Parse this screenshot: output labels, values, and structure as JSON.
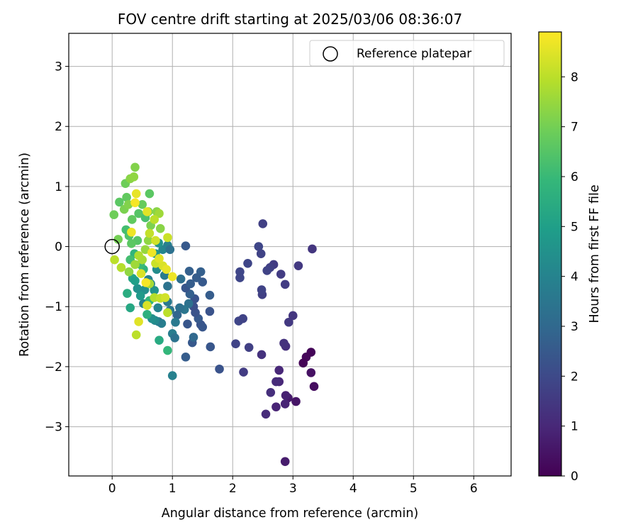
{
  "chart_data": {
    "type": "scatter",
    "title": "FOV centre drift starting at 2025/03/06 08:36:07",
    "xlabel": "Angular distance from reference (arcmin)",
    "ylabel": "Rotation from reference (arcmin)",
    "xlim": [
      -0.72,
      6.62
    ],
    "ylim": [
      -3.82,
      3.55
    ],
    "xticks": [
      0,
      1,
      2,
      3,
      4,
      5,
      6
    ],
    "xtick_labels": [
      "0",
      "1",
      "2",
      "3",
      "4",
      "5",
      "6"
    ],
    "yticks": [
      -3,
      -2,
      -1,
      0,
      1,
      2,
      3
    ],
    "ytick_labels": [
      "−3",
      "−2",
      "−1",
      "0",
      "1",
      "2",
      "3"
    ],
    "grid": true,
    "legend": {
      "placement": "top-right",
      "entries": [
        {
          "label": "Reference platepar",
          "marker": "open-circle"
        }
      ]
    },
    "reference_point": {
      "x": 0,
      "y": 0
    },
    "colorbar": {
      "label": "Hours from first FF file",
      "range": [
        0,
        8.9
      ],
      "ticks": [
        0,
        1,
        2,
        3,
        4,
        5,
        6,
        7,
        8
      ],
      "tick_labels": [
        "0",
        "1",
        "2",
        "3",
        "4",
        "5",
        "6",
        "7",
        "8"
      ],
      "colormap": "viridis",
      "stops": [
        "#440154",
        "#482878",
        "#3e4989",
        "#31688e",
        "#26828e",
        "#1f9e89",
        "#35b779",
        "#6ece58",
        "#b5de2b",
        "#fde725"
      ]
    },
    "points": [
      {
        "x": 2.87,
        "y": -3.58,
        "c": 0.7
      },
      {
        "x": 3.35,
        "y": -2.33,
        "c": 0.3
      },
      {
        "x": 3.3,
        "y": -2.1,
        "c": 0.4
      },
      {
        "x": 3.3,
        "y": -1.76,
        "c": 0.1
      },
      {
        "x": 3.22,
        "y": -1.84,
        "c": 0.15
      },
      {
        "x": 3.17,
        "y": -1.94,
        "c": 0.05
      },
      {
        "x": 3.05,
        "y": -2.58,
        "c": 0.5
      },
      {
        "x": 2.92,
        "y": -2.52,
        "c": 0.6
      },
      {
        "x": 2.88,
        "y": -2.48,
        "c": 0.8
      },
      {
        "x": 2.87,
        "y": -2.62,
        "c": 0.9
      },
      {
        "x": 2.77,
        "y": -2.25,
        "c": 1.0
      },
      {
        "x": 2.72,
        "y": -2.67,
        "c": 0.9
      },
      {
        "x": 2.72,
        "y": -2.25,
        "c": 1.1
      },
      {
        "x": 2.77,
        "y": -2.06,
        "c": 1.0
      },
      {
        "x": 2.63,
        "y": -2.43,
        "c": 1.2
      },
      {
        "x": 2.55,
        "y": -2.79,
        "c": 1.1
      },
      {
        "x": 2.88,
        "y": -1.66,
        "c": 1.2
      },
      {
        "x": 2.85,
        "y": -1.61,
        "c": 1.3
      },
      {
        "x": 2.48,
        "y": -1.8,
        "c": 1.3
      },
      {
        "x": 2.93,
        "y": -1.26,
        "c": 1.5
      },
      {
        "x": 3.0,
        "y": -1.15,
        "c": 1.4
      },
      {
        "x": 2.18,
        "y": -2.09,
        "c": 1.6
      },
      {
        "x": 2.27,
        "y": -1.68,
        "c": 1.7
      },
      {
        "x": 2.05,
        "y": -1.62,
        "c": 1.8
      },
      {
        "x": 2.1,
        "y": -1.24,
        "c": 1.9
      },
      {
        "x": 2.17,
        "y": -1.2,
        "c": 1.8
      },
      {
        "x": 2.49,
        "y": -0.8,
        "c": 1.7
      },
      {
        "x": 2.48,
        "y": -0.72,
        "c": 1.8
      },
      {
        "x": 2.87,
        "y": -0.63,
        "c": 1.6
      },
      {
        "x": 2.8,
        "y": -0.46,
        "c": 1.6
      },
      {
        "x": 2.68,
        "y": -0.3,
        "c": 1.6
      },
      {
        "x": 2.62,
        "y": -0.35,
        "c": 1.7
      },
      {
        "x": 2.57,
        "y": -0.4,
        "c": 1.8
      },
      {
        "x": 2.25,
        "y": -0.28,
        "c": 1.9
      },
      {
        "x": 2.12,
        "y": -0.42,
        "c": 1.9
      },
      {
        "x": 2.12,
        "y": -0.52,
        "c": 1.9
      },
      {
        "x": 2.43,
        "y": 0.0,
        "c": 1.9
      },
      {
        "x": 2.47,
        "y": -0.12,
        "c": 1.8
      },
      {
        "x": 2.5,
        "y": 0.38,
        "c": 1.7
      },
      {
        "x": 3.09,
        "y": -0.32,
        "c": 1.5
      },
      {
        "x": 3.32,
        "y": -0.04,
        "c": 1.4
      },
      {
        "x": 1.78,
        "y": -2.04,
        "c": 2.3
      },
      {
        "x": 1.63,
        "y": -1.67,
        "c": 2.4
      },
      {
        "x": 1.62,
        "y": -1.08,
        "c": 2.3
      },
      {
        "x": 1.62,
        "y": -0.81,
        "c": 2.6
      },
      {
        "x": 1.5,
        "y": -0.59,
        "c": 2.5
      },
      {
        "x": 1.47,
        "y": -0.42,
        "c": 2.7
      },
      {
        "x": 1.47,
        "y": -1.3,
        "c": 2.3
      },
      {
        "x": 1.5,
        "y": -1.34,
        "c": 2.4
      },
      {
        "x": 1.43,
        "y": -1.2,
        "c": 2.5
      },
      {
        "x": 1.22,
        "y": -1.84,
        "c": 2.6
      },
      {
        "x": 1.33,
        "y": -1.6,
        "c": 2.5
      },
      {
        "x": 1.35,
        "y": -1.51,
        "c": 3.0
      },
      {
        "x": 1.25,
        "y": -1.29,
        "c": 2.4
      },
      {
        "x": 1.38,
        "y": -1.1,
        "c": 2.3
      },
      {
        "x": 1.35,
        "y": -1.0,
        "c": 2.2
      },
      {
        "x": 1.37,
        "y": -0.87,
        "c": 2.3
      },
      {
        "x": 1.29,
        "y": -0.79,
        "c": 2.7
      },
      {
        "x": 1.22,
        "y": -0.69,
        "c": 2.4
      },
      {
        "x": 1.3,
        "y": -0.62,
        "c": 2.6
      },
      {
        "x": 1.4,
        "y": -0.52,
        "c": 2.6
      },
      {
        "x": 1.28,
        "y": -0.41,
        "c": 2.7
      },
      {
        "x": 1.14,
        "y": -0.54,
        "c": 3.2
      },
      {
        "x": 1.22,
        "y": 0.01,
        "c": 2.5
      },
      {
        "x": 1.27,
        "y": -0.95,
        "c": 3.3
      },
      {
        "x": 1.2,
        "y": -1.05,
        "c": 3.5
      },
      {
        "x": 1.12,
        "y": -1.02,
        "c": 3.3
      },
      {
        "x": 1.08,
        "y": -1.14,
        "c": 2.9
      },
      {
        "x": 1.05,
        "y": -1.26,
        "c": 3.6
      },
      {
        "x": 1.0,
        "y": -1.45,
        "c": 3.8
      },
      {
        "x": 1.04,
        "y": -1.52,
        "c": 3.4
      },
      {
        "x": 1.0,
        "y": -2.15,
        "c": 3.9
      },
      {
        "x": 0.96,
        "y": -1.06,
        "c": 3.5
      },
      {
        "x": 0.92,
        "y": -0.92,
        "c": 3.6
      },
      {
        "x": 0.92,
        "y": -0.66,
        "c": 3.4
      },
      {
        "x": 0.87,
        "y": -0.48,
        "c": 3.7
      },
      {
        "x": 0.82,
        "y": -1.28,
        "c": 3.8
      },
      {
        "x": 0.77,
        "y": -1.25,
        "c": 3.7
      },
      {
        "x": 0.76,
        "y": -1.02,
        "c": 4.0
      },
      {
        "x": 0.71,
        "y": -1.23,
        "c": 4.2
      },
      {
        "x": 0.66,
        "y": -1.2,
        "c": 4.4
      },
      {
        "x": 0.7,
        "y": -0.73,
        "c": 4.6
      },
      {
        "x": 0.64,
        "y": -0.62,
        "c": 4.1
      },
      {
        "x": 0.6,
        "y": -0.55,
        "c": 3.9
      },
      {
        "x": 0.54,
        "y": -0.72,
        "c": 4.4
      },
      {
        "x": 0.52,
        "y": -0.95,
        "c": 4.0
      },
      {
        "x": 0.47,
        "y": -0.82,
        "c": 4.8
      },
      {
        "x": 0.42,
        "y": -0.7,
        "c": 4.5
      },
      {
        "x": 0.34,
        "y": -0.53,
        "c": 5.2
      },
      {
        "x": 0.38,
        "y": -0.57,
        "c": 5.0
      },
      {
        "x": 0.74,
        "y": -0.38,
        "c": 4.3
      },
      {
        "x": 0.72,
        "y": -0.12,
        "c": 4.7
      },
      {
        "x": 0.84,
        "y": -0.05,
        "c": 4.1
      },
      {
        "x": 0.92,
        "y": 0.02,
        "c": 3.9
      },
      {
        "x": 0.96,
        "y": -0.05,
        "c": 3.3
      },
      {
        "x": 0.77,
        "y": 0.06,
        "c": 4.6
      },
      {
        "x": 0.78,
        "y": -1.56,
        "c": 5.4
      },
      {
        "x": 0.92,
        "y": -1.73,
        "c": 5.9
      },
      {
        "x": 0.25,
        "y": -0.78,
        "c": 5.5
      },
      {
        "x": 0.3,
        "y": -1.02,
        "c": 5.3
      },
      {
        "x": 0.58,
        "y": -1.13,
        "c": 5.6
      },
      {
        "x": 0.62,
        "y": -0.9,
        "c": 5.8
      },
      {
        "x": 0.52,
        "y": -0.38,
        "c": 5.7
      },
      {
        "x": 0.47,
        "y": -0.3,
        "c": 6.0
      },
      {
        "x": 0.37,
        "y": -0.12,
        "c": 5.8
      },
      {
        "x": 0.3,
        "y": -0.22,
        "c": 6.2
      },
      {
        "x": 0.42,
        "y": 0.1,
        "c": 6.5
      },
      {
        "x": 0.32,
        "y": 0.05,
        "c": 6.6
      },
      {
        "x": 0.28,
        "y": 0.18,
        "c": 6.4
      },
      {
        "x": 0.23,
        "y": 0.28,
        "c": 6.2
      },
      {
        "x": 0.33,
        "y": 0.45,
        "c": 6.7
      },
      {
        "x": 0.44,
        "y": 0.55,
        "c": 6.5
      },
      {
        "x": 0.55,
        "y": 0.48,
        "c": 6.3
      },
      {
        "x": 0.5,
        "y": 0.7,
        "c": 6.8
      },
      {
        "x": 0.62,
        "y": 0.88,
        "c": 6.6
      },
      {
        "x": 0.24,
        "y": 0.82,
        "c": 6.7
      },
      {
        "x": 0.22,
        "y": 1.05,
        "c": 6.9
      },
      {
        "x": 0.12,
        "y": 0.74,
        "c": 6.6
      },
      {
        "x": 0.03,
        "y": 0.53,
        "c": 6.9
      },
      {
        "x": 0.1,
        "y": 0.12,
        "c": 7.0
      },
      {
        "x": 0.2,
        "y": 0.62,
        "c": 7.1
      },
      {
        "x": 0.27,
        "y": 0.7,
        "c": 7.2
      },
      {
        "x": 0.3,
        "y": 1.13,
        "c": 7.3
      },
      {
        "x": 0.36,
        "y": 1.16,
        "c": 7.4
      },
      {
        "x": 0.38,
        "y": 1.32,
        "c": 7.2
      },
      {
        "x": 0.6,
        "y": 0.58,
        "c": 7.0
      },
      {
        "x": 0.64,
        "y": 0.35,
        "c": 7.1
      },
      {
        "x": 0.74,
        "y": 0.58,
        "c": 7.3
      },
      {
        "x": 0.78,
        "y": 0.55,
        "c": 7.6
      },
      {
        "x": 0.8,
        "y": 0.3,
        "c": 7.3
      },
      {
        "x": 0.6,
        "y": 0.1,
        "c": 7.4
      },
      {
        "x": 0.55,
        "y": -0.05,
        "c": 7.5
      },
      {
        "x": 0.5,
        "y": -0.22,
        "c": 7.7
      },
      {
        "x": 0.44,
        "y": -0.15,
        "c": 7.8
      },
      {
        "x": 0.38,
        "y": -0.3,
        "c": 7.6
      },
      {
        "x": 0.28,
        "y": -0.42,
        "c": 7.4
      },
      {
        "x": 0.15,
        "y": -0.35,
        "c": 7.9
      },
      {
        "x": 0.04,
        "y": -0.22,
        "c": 8.0
      },
      {
        "x": 0.62,
        "y": -0.62,
        "c": 7.7
      },
      {
        "x": 0.7,
        "y": -0.85,
        "c": 7.9
      },
      {
        "x": 0.8,
        "y": -0.86,
        "c": 8.1
      },
      {
        "x": 0.88,
        "y": -0.85,
        "c": 8.3
      },
      {
        "x": 0.92,
        "y": -1.1,
        "c": 8.0
      },
      {
        "x": 0.4,
        "y": -1.47,
        "c": 8.0
      },
      {
        "x": 0.44,
        "y": -1.25,
        "c": 8.5
      },
      {
        "x": 0.58,
        "y": -0.98,
        "c": 8.4
      },
      {
        "x": 0.72,
        "y": -0.28,
        "c": 8.2
      },
      {
        "x": 0.84,
        "y": -0.32,
        "c": 8.4
      },
      {
        "x": 0.9,
        "y": -0.38,
        "c": 8.6
      },
      {
        "x": 1.0,
        "y": -0.5,
        "c": 8.7
      },
      {
        "x": 0.92,
        "y": 0.15,
        "c": 8.2
      },
      {
        "x": 0.72,
        "y": 0.1,
        "c": 8.3
      },
      {
        "x": 0.62,
        "y": 0.22,
        "c": 8.1
      },
      {
        "x": 0.7,
        "y": 0.45,
        "c": 8.0
      },
      {
        "x": 0.58,
        "y": 0.58,
        "c": 8.5
      },
      {
        "x": 0.4,
        "y": 0.88,
        "c": 8.6
      },
      {
        "x": 0.38,
        "y": 0.73,
        "c": 8.8
      },
      {
        "x": 0.32,
        "y": 0.24,
        "c": 8.7
      },
      {
        "x": 0.48,
        "y": -0.45,
        "c": 8.4
      },
      {
        "x": 0.56,
        "y": -0.6,
        "c": 8.8
      },
      {
        "x": 0.66,
        "y": -0.1,
        "c": 8.7
      },
      {
        "x": 0.78,
        "y": -0.2,
        "c": 8.5
      }
    ]
  }
}
